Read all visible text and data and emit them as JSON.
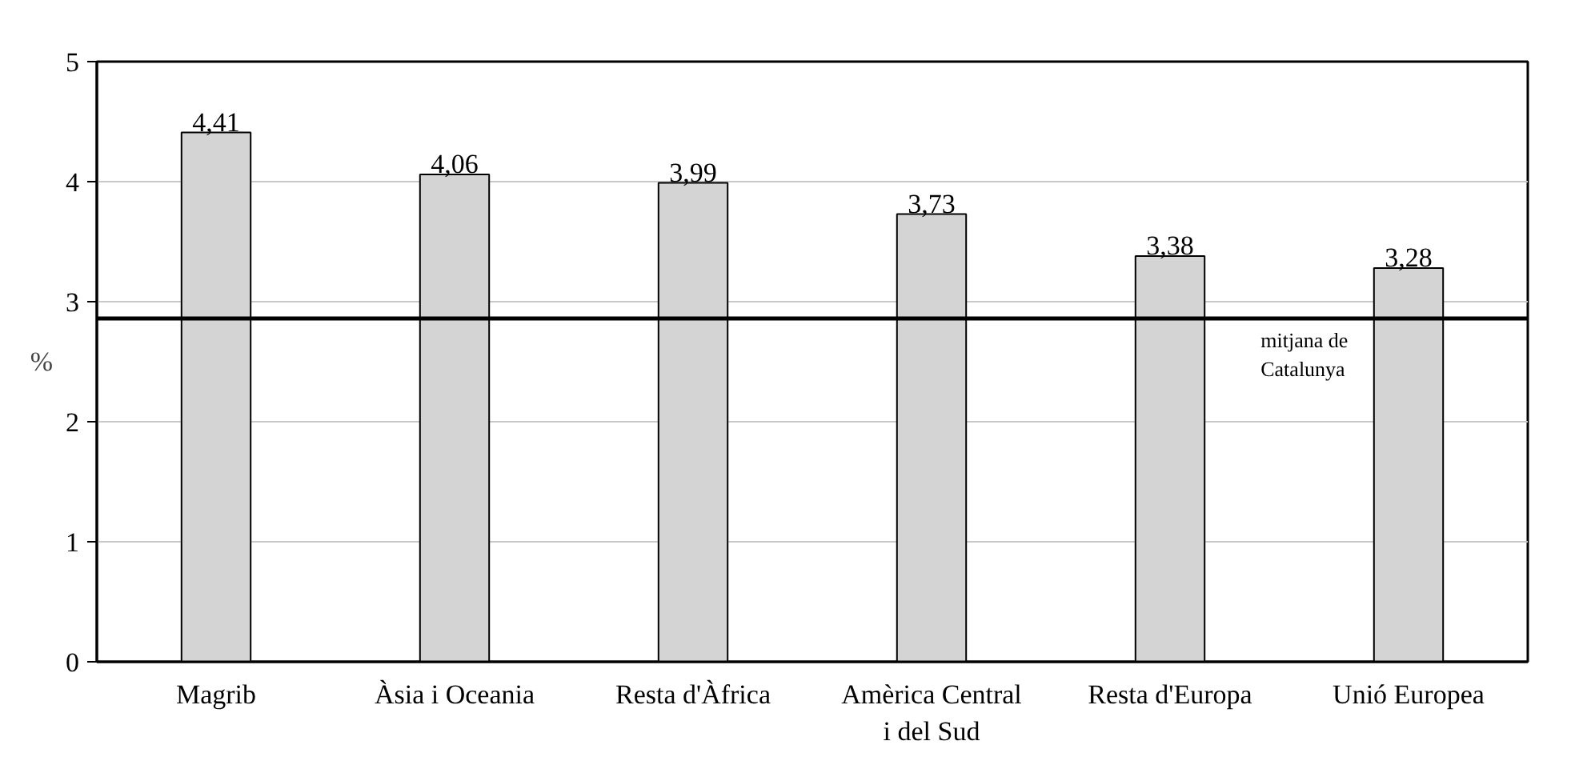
{
  "chart_data": {
    "type": "bar",
    "ylabel": "%",
    "categories": [
      "Magrib",
      "Àsia i Oceania",
      "Resta d'Àfrica",
      "Amèrica Central\ni del Sud",
      "Resta d'Europa",
      "Unió Europea"
    ],
    "values": [
      4.41,
      4.06,
      3.99,
      3.73,
      3.38,
      3.28
    ],
    "value_labels": [
      "4,41",
      "4,06",
      "3,99",
      "3,73",
      "3,38",
      "3,28"
    ],
    "color": "#d4d4d4",
    "ylim": [
      0,
      5
    ],
    "yticks": [
      0,
      1,
      2,
      3,
      4,
      5
    ],
    "grid": "y",
    "ref_lines": [
      {
        "axis": "y",
        "value": 2.86,
        "label": "mitjana de\nCatalunya",
        "color": "#000000"
      }
    ]
  }
}
